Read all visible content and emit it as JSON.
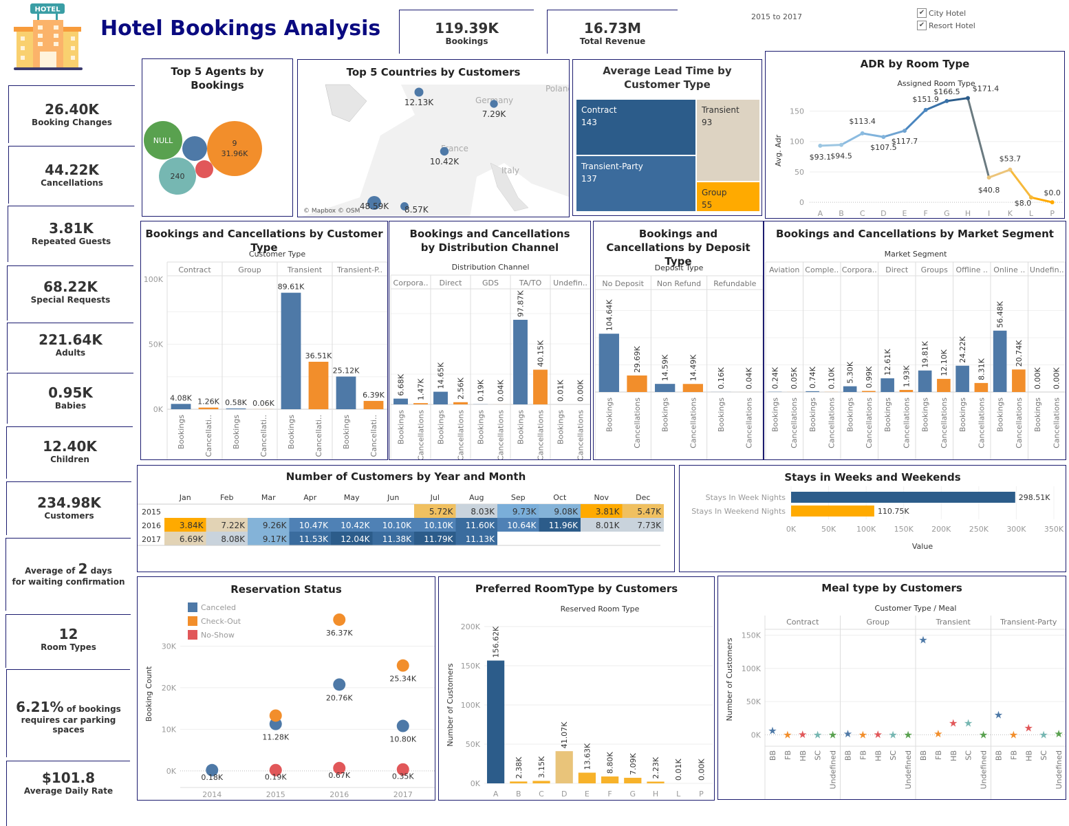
{
  "header": {
    "title": "Hotel Bookings Analysis",
    "logo_icon": "hotel-icon",
    "logo_sign": "HOTEL",
    "bookings": {
      "value": "119.39K",
      "label": "Bookings"
    },
    "revenue": {
      "value": "16.73M",
      "label": "Total Revenue"
    },
    "date_range": "2015 to 2017",
    "filters": [
      {
        "label": "City Hotel",
        "checked": true
      },
      {
        "label": "Resort Hotel",
        "checked": true
      }
    ]
  },
  "kpis": [
    {
      "value": "26.40K",
      "label": "Booking Changes"
    },
    {
      "value": "44.22K",
      "label": "Cancellations"
    },
    {
      "value": "3.81K",
      "label": "Repeated Guests"
    },
    {
      "value": "68.22K",
      "label": "Special Requests"
    },
    {
      "value": "221.64K",
      "label": "Adults"
    },
    {
      "value": "0.95K",
      "label": "Babies"
    },
    {
      "value": "12.40K",
      "label": "Children"
    },
    {
      "value": "234.98K",
      "label": "Customers"
    }
  ],
  "kpi_wait": {
    "prefix": "Average of ",
    "value": "2",
    "suffix": " days",
    "line2": "for waiting confirmation"
  },
  "kpi_rooms": {
    "value": "12",
    "label": "Room Types"
  },
  "kpi_parking": {
    "value": "6.21%",
    "suffix": " of bookings",
    "line2": "requires car parking spaces"
  },
  "kpi_adr": {
    "value": "$101.8",
    "label": "Average Daily Rate"
  },
  "colors": {
    "blue": "#4e79a7",
    "orange": "#f28e2b",
    "red": "#e15759",
    "teal": "#76b7b2",
    "green": "#59a14f",
    "navy": "#2c5c8a",
    "gold": "#ffaa00",
    "border": "#1a1a6e"
  },
  "chart_data": [
    {
      "id": "agents",
      "type": "bubble",
      "title": "Top 5 Agents by Bookings",
      "bubbles": [
        {
          "label": "9",
          "value_label": "31.96K",
          "color": "#f28e2b",
          "show_label": true
        },
        {
          "label": "NULL",
          "color": "#59a14f",
          "show_label": true
        },
        {
          "label": "240",
          "color": "#76b7b2",
          "show_label": true
        },
        {
          "label": "",
          "color": "#4e79a7",
          "show_label": false
        },
        {
          "label": "",
          "color": "#e15759",
          "show_label": false
        }
      ]
    },
    {
      "id": "countries",
      "type": "map",
      "title": "Top 5 Countries by Customers",
      "attribution": "© Mapbox © OSM",
      "map_labels": [
        "Germany",
        "France",
        "Italy",
        "Poland"
      ],
      "points": [
        {
          "country": "Portugal",
          "value": 48590,
          "label": "48.59K"
        },
        {
          "country": "United Kingdom",
          "value": 12130,
          "label": "12.13K"
        },
        {
          "country": "France",
          "value": 10420,
          "label": "10.42K"
        },
        {
          "country": "Spain",
          "value": 8570,
          "label": "8.57K"
        },
        {
          "country": "Germany",
          "value": 7290,
          "label": "7.29K"
        }
      ]
    },
    {
      "id": "leadtime",
      "type": "treemap",
      "title": "Average Lead Time by Customer Type",
      "items": [
        {
          "label": "Contract",
          "value": 143,
          "color": "#2c5c8a"
        },
        {
          "label": "Transient-Party",
          "value": 137,
          "color": "#3b6b9c"
        },
        {
          "label": "Transient",
          "value": 93,
          "color": "#ddd3c2"
        },
        {
          "label": "Group",
          "value": 55,
          "color": "#ffaa00"
        }
      ]
    },
    {
      "id": "adr",
      "type": "line",
      "title": "ADR by Room Type",
      "xlabel": "Assigned Room Type",
      "ylabel": "Avg. Adr",
      "categories": [
        "A",
        "B",
        "C",
        "D",
        "E",
        "F",
        "G",
        "H",
        "I",
        "K",
        "L",
        "P"
      ],
      "values": [
        93.1,
        94.5,
        113.4,
        107.5,
        117.7,
        151.9,
        166.5,
        171.4,
        40.8,
        53.7,
        8.0,
        0.0
      ],
      "labels": [
        "$93.1",
        "$94.5",
        "$113.4",
        "$107.5",
        "$117.7",
        "$151.9",
        "$166.5",
        "$171.4",
        "$40.8",
        "$53.7",
        "$8.0",
        "$0.0"
      ],
      "yticks": [
        0,
        50,
        100,
        150
      ],
      "ylim": [
        -10,
        180
      ]
    },
    {
      "id": "custtype",
      "type": "bar",
      "title": "Bookings and Cancellations by Customer Type",
      "header": "Customer Type",
      "groups": [
        "Contract",
        "Group",
        "Transient",
        "Transient-P.."
      ],
      "measures": [
        "Bookings",
        "Cancellati.."
      ],
      "values": [
        [
          4080,
          1260
        ],
        [
          580,
          60
        ],
        [
          89610,
          36510
        ],
        [
          25120,
          6390
        ]
      ],
      "labels": [
        [
          "4.08K",
          "1.26K"
        ],
        [
          "0.58K",
          "0.06K"
        ],
        [
          "89.61K",
          "36.51K"
        ],
        [
          "25.12K",
          "6.39K"
        ]
      ],
      "yticks": [
        0,
        50000,
        100000
      ],
      "ytick_labels": [
        "0K",
        "50K",
        "100K"
      ],
      "ylim": [
        0,
        100000
      ]
    },
    {
      "id": "distchannel",
      "type": "bar",
      "title": "Bookings and Cancellations by Distribution Channel",
      "header": "Distribution Channel",
      "groups": [
        "Corpora..",
        "Direct",
        "GDS",
        "TA/TO",
        "Undefin.."
      ],
      "measures": [
        "Bookings",
        "Cancellations"
      ],
      "values": [
        [
          6680,
          1470
        ],
        [
          14650,
          2560
        ],
        [
          190,
          40
        ],
        [
          97870,
          40150
        ],
        [
          10,
          0
        ]
      ],
      "labels": [
        [
          "6.68K",
          "1.47K"
        ],
        [
          "14.65K",
          "2.56K"
        ],
        [
          "0.19K",
          "0.04K"
        ],
        [
          "97.87K",
          "40.15K"
        ],
        [
          "0.01K",
          "0.00K"
        ]
      ],
      "ylim": [
        0,
        140000
      ]
    },
    {
      "id": "deposit",
      "type": "bar",
      "title": "Bookings and Cancellations by Deposit Type",
      "header": "Deposit Type",
      "groups": [
        "No Deposit",
        "Non Refund",
        "Refundable"
      ],
      "measures": [
        "Bookings",
        "Cancellations"
      ],
      "values": [
        [
          104640,
          29690
        ],
        [
          14590,
          14490
        ],
        [
          160,
          40
        ]
      ],
      "labels": [
        [
          "104.64K",
          "29.69K"
        ],
        [
          "14.59K",
          "14.49K"
        ],
        [
          "0.16K",
          "0.04K"
        ]
      ],
      "ylim": [
        0,
        195000
      ]
    },
    {
      "id": "market",
      "type": "bar",
      "title": "Bookings and Cancellations by Market Segment",
      "header": "Market Segment",
      "groups": [
        "Aviation",
        "Comple..",
        "Corpora..",
        "Direct",
        "Groups",
        "Offline ..",
        "Online ..",
        "Undefin.."
      ],
      "measures": [
        "Bookings",
        "Cancellations"
      ],
      "values": [
        [
          240,
          50
        ],
        [
          740,
          100
        ],
        [
          5300,
          990
        ],
        [
          12610,
          1930
        ],
        [
          19810,
          12100
        ],
        [
          24220,
          8310
        ],
        [
          56480,
          20740
        ],
        [
          0,
          0
        ]
      ],
      "labels": [
        [
          "0.24K",
          "0.05K"
        ],
        [
          "0.74K",
          "0.10K"
        ],
        [
          "5.30K",
          "0.99K"
        ],
        [
          "12.61K",
          "1.93K"
        ],
        [
          "19.81K",
          "12.10K"
        ],
        [
          "24.22K",
          "8.31K"
        ],
        [
          "56.48K",
          "20.74K"
        ],
        [
          "0.00K",
          "0.00K"
        ]
      ],
      "ylim": [
        0,
        100000
      ]
    },
    {
      "id": "heatmap",
      "type": "heatmap",
      "title": "Number of Customers by Year and Month",
      "columns": [
        "Jan",
        "Feb",
        "Mar",
        "Apr",
        "May",
        "Jun",
        "Jul",
        "Aug",
        "Sep",
        "Oct",
        "Nov",
        "Dec"
      ],
      "rows": [
        {
          "year": "2015",
          "values": [
            null,
            null,
            null,
            null,
            null,
            null,
            5720,
            8030,
            9730,
            9080,
            3810,
            5470
          ],
          "labels": [
            "",
            "",
            "",
            "",
            "",
            "",
            "5.72K",
            "8.03K",
            "9.73K",
            "9.08K",
            "3.81K",
            "5.47K"
          ]
        },
        {
          "year": "2016",
          "values": [
            3840,
            7220,
            9260,
            10470,
            10420,
            10100,
            10100,
            11600,
            10640,
            11960,
            8010,
            7730
          ],
          "labels": [
            "3.84K",
            "7.22K",
            "9.26K",
            "10.47K",
            "10.42K",
            "10.10K",
            "10.10K",
            "11.60K",
            "10.64K",
            "11.96K",
            "8.01K",
            "7.73K"
          ]
        },
        {
          "year": "2017",
          "values": [
            6690,
            8080,
            9170,
            11530,
            12040,
            11380,
            11790,
            11130,
            null,
            null,
            null,
            null
          ],
          "labels": [
            "6.69K",
            "8.08K",
            "9.17K",
            "11.53K",
            "12.04K",
            "11.38K",
            "11.79K",
            "11.13K",
            "",
            "",
            "",
            ""
          ]
        }
      ]
    },
    {
      "id": "stays",
      "type": "bar",
      "orientation": "horizontal",
      "title": "Stays in Weeks and Weekends",
      "categories": [
        "Stays In Week Nights",
        "Stays In Weekend Nights"
      ],
      "values": [
        298510,
        110750
      ],
      "labels": [
        "298.51K",
        "110.75K"
      ],
      "colors": [
        "#2c5c8a",
        "#ffaa00"
      ],
      "xticks": [
        0,
        50000,
        100000,
        150000,
        200000,
        250000,
        300000,
        350000
      ],
      "xtick_labels": [
        "0K",
        "50K",
        "100K",
        "150K",
        "200K",
        "250K",
        "300K",
        "350K"
      ],
      "xlabel": "Value",
      "xlim": [
        0,
        350000
      ]
    },
    {
      "id": "reservation",
      "type": "scatter",
      "title": "Reservation Status",
      "ylabel": "Booking Count",
      "categories": [
        "2014",
        "2015",
        "2016",
        "2017"
      ],
      "legend": [
        {
          "name": "Canceled",
          "color": "#4e79a7"
        },
        {
          "name": "Check-Out",
          "color": "#f28e2b"
        },
        {
          "name": "No-Show",
          "color": "#e15759"
        }
      ],
      "legend_position": "top-left",
      "points": [
        {
          "series": "Canceled",
          "x": "2014",
          "y": 180,
          "label": "0.18K"
        },
        {
          "series": "Canceled",
          "x": "2015",
          "y": 11280,
          "label": "11.28K"
        },
        {
          "series": "Check-Out",
          "x": "2015",
          "y": 13300,
          "label": ""
        },
        {
          "series": "No-Show",
          "x": "2015",
          "y": 190,
          "label": "0.19K"
        },
        {
          "series": "Check-Out",
          "x": "2016",
          "y": 36370,
          "label": "36.37K"
        },
        {
          "series": "Canceled",
          "x": "2016",
          "y": 20760,
          "label": "20.76K"
        },
        {
          "series": "No-Show",
          "x": "2016",
          "y": 670,
          "label": "0.67K"
        },
        {
          "series": "Check-Out",
          "x": "2017",
          "y": 25340,
          "label": "25.34K"
        },
        {
          "series": "Canceled",
          "x": "2017",
          "y": 10800,
          "label": "10.80K"
        },
        {
          "series": "No-Show",
          "x": "2017",
          "y": 350,
          "label": "0.35K"
        }
      ],
      "yticks": [
        0,
        10000,
        20000,
        30000
      ],
      "ytick_labels": [
        "0K",
        "10K",
        "20K",
        "30K"
      ],
      "ylim": [
        -3000,
        40000
      ]
    },
    {
      "id": "roomtype",
      "type": "bar",
      "title": "Preferred RoomType by Customers",
      "xlabel": "Reserved Room Type",
      "ylabel": "Number of Customers",
      "categories": [
        "A",
        "B",
        "C",
        "D",
        "E",
        "F",
        "G",
        "H",
        "L",
        "P"
      ],
      "values": [
        156620,
        2380,
        3150,
        41070,
        13630,
        8800,
        7090,
        2230,
        10,
        0
      ],
      "labels": [
        "156.62K",
        "2.38K",
        "3.15K",
        "41.07K",
        "13.63K",
        "8.80K",
        "7.09K",
        "2.23K",
        "0.01K",
        "0.00K"
      ],
      "colors": [
        "#2c5c8a",
        "#f7b22a",
        "#f7b22a",
        "#e9c47a",
        "#f7b22a",
        "#f7b22a",
        "#f7b22a",
        "#f7b22a",
        "#f7b22a",
        "#f7b22a"
      ],
      "yticks": [
        0,
        50000,
        100000,
        150000,
        200000
      ],
      "ytick_labels": [
        "0K",
        "50K",
        "100K",
        "150K",
        "200K"
      ],
      "ylim": [
        0,
        200000
      ]
    },
    {
      "id": "meal",
      "type": "scatter",
      "title": "Meal type by Customers",
      "header": "Customer Type / Meal",
      "ylabel": "Number of Customers",
      "groups": [
        "Contract",
        "Group",
        "Transient",
        "Transient-Party"
      ],
      "meals": [
        "BB",
        "FB",
        "HB",
        "SC",
        "Undefined"
      ],
      "meal_colors": [
        "#4e79a7",
        "#f28e2b",
        "#e15759",
        "#76b7b2",
        "#59a14f"
      ],
      "values": [
        [
          6000,
          100,
          500,
          0,
          0
        ],
        [
          1500,
          100,
          200,
          0,
          0
        ],
        [
          143000,
          1200,
          17500,
          17500,
          0
        ],
        [
          30000,
          100,
          10000,
          0,
          1200
        ]
      ],
      "yticks": [
        0,
        50000,
        100000,
        150000
      ],
      "ytick_labels": [
        "0K",
        "50K",
        "100K",
        "150K"
      ],
      "ylim": [
        -10000,
        160000
      ]
    }
  ]
}
